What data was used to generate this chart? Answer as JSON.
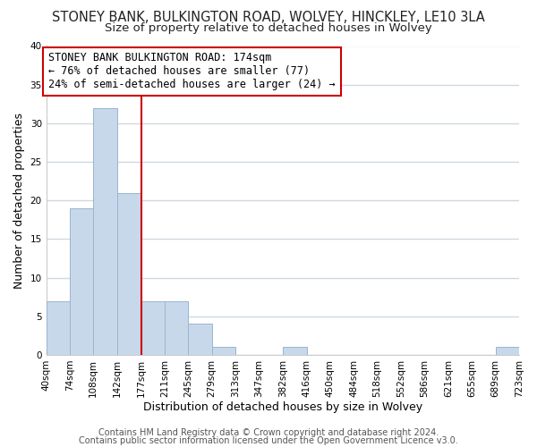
{
  "title_line1": "STONEY BANK, BULKINGTON ROAD, WOLVEY, HINCKLEY, LE10 3LA",
  "title_line2": "Size of property relative to detached houses in Wolvey",
  "xlabel": "Distribution of detached houses by size in Wolvey",
  "ylabel": "Number of detached properties",
  "bin_edges": [
    40,
    74,
    108,
    142,
    177,
    211,
    245,
    279,
    313,
    347,
    382,
    416,
    450,
    484,
    518,
    552,
    586,
    621,
    655,
    689,
    723
  ],
  "bin_labels": [
    "40sqm",
    "74sqm",
    "108sqm",
    "142sqm",
    "177sqm",
    "211sqm",
    "245sqm",
    "279sqm",
    "313sqm",
    "347sqm",
    "382sqm",
    "416sqm",
    "450sqm",
    "484sqm",
    "518sqm",
    "552sqm",
    "586sqm",
    "621sqm",
    "655sqm",
    "689sqm",
    "723sqm"
  ],
  "counts": [
    7,
    19,
    32,
    21,
    7,
    7,
    4,
    1,
    0,
    0,
    1,
    0,
    0,
    0,
    0,
    0,
    0,
    0,
    0,
    1
  ],
  "bar_color": "#c8d8eb",
  "bar_edge_color": "#9ab5cc",
  "vline_x": 177,
  "vline_color": "#cc0000",
  "ylim": [
    0,
    40
  ],
  "yticks": [
    0,
    5,
    10,
    15,
    20,
    25,
    30,
    35,
    40
  ],
  "annotation_title": "STONEY BANK BULKINGTON ROAD: 174sqm",
  "annotation_line2": "← 76% of detached houses are smaller (77)",
  "annotation_line3": "24% of semi-detached houses are larger (24) →",
  "footer_line1": "Contains HM Land Registry data © Crown copyright and database right 2024.",
  "footer_line2": "Contains public sector information licensed under the Open Government Licence v3.0.",
  "background_color": "#ffffff",
  "plot_bg_color": "#ffffff",
  "grid_color": "#d0d8e0",
  "title_fontsize": 10.5,
  "subtitle_fontsize": 9.5,
  "axis_label_fontsize": 9,
  "tick_fontsize": 7.5,
  "annotation_fontsize": 8.5,
  "footer_fontsize": 7
}
